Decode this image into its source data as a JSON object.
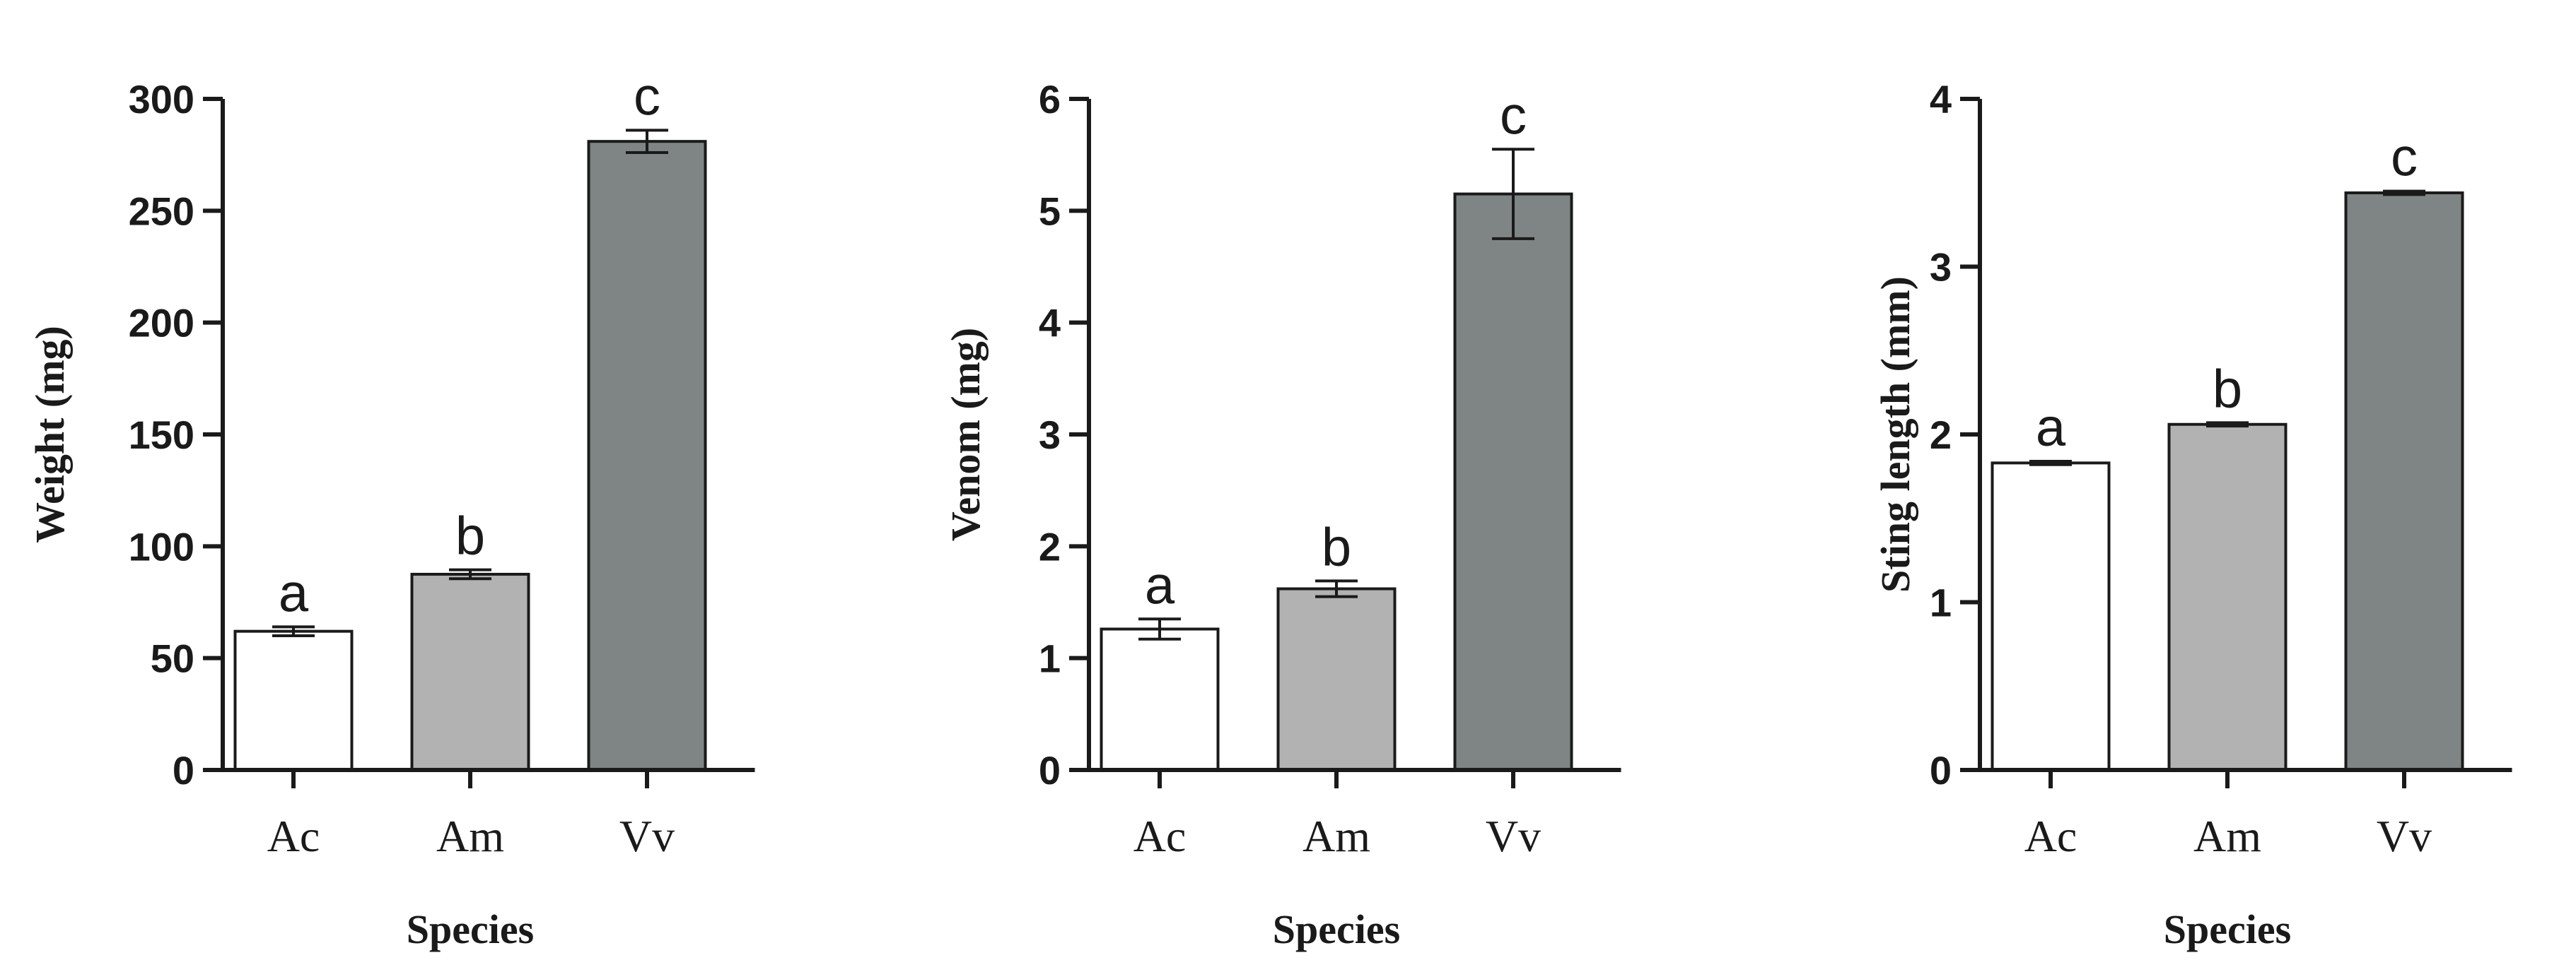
{
  "chart_data": [
    {
      "type": "bar",
      "title": "",
      "xlabel": "Species",
      "ylabel": "Weight (mg)",
      "categories": [
        "Ac",
        "Am",
        "Vv"
      ],
      "values": [
        62,
        87.5,
        281
      ],
      "errors": [
        2,
        2,
        5
      ],
      "labels": [
        "a",
        "b",
        "c"
      ],
      "ylim": [
        0,
        300
      ],
      "yticks": [
        0,
        50,
        100,
        150,
        200,
        250,
        300
      ],
      "bar_colors": [
        "#ffffff",
        "#b2b2b2",
        "#7f8584"
      ],
      "grid": false
    },
    {
      "type": "bar",
      "title": "",
      "xlabel": "Species",
      "ylabel": "Venom (mg)",
      "categories": [
        "Ac",
        "Am",
        "Vv"
      ],
      "values": [
        1.26,
        1.62,
        5.15
      ],
      "errors": [
        0.09,
        0.07,
        0.4
      ],
      "labels": [
        "a",
        "b",
        "c"
      ],
      "ylim": [
        0,
        6
      ],
      "yticks": [
        0,
        1,
        2,
        3,
        4,
        5,
        6
      ],
      "bar_colors": [
        "#ffffff",
        "#b2b2b2",
        "#7f8584"
      ],
      "grid": false
    },
    {
      "type": "bar",
      "title": "",
      "xlabel": "Species",
      "ylabel": "Sting length (mm)",
      "categories": [
        "Ac",
        "Am",
        "Vv"
      ],
      "values": [
        1.83,
        2.06,
        3.44
      ],
      "errors": [
        0.01,
        0.01,
        0.01
      ],
      "labels": [
        "a",
        "b",
        "c"
      ],
      "ylim": [
        0,
        4
      ],
      "yticks": [
        0,
        1,
        2,
        3,
        4
      ],
      "bar_colors": [
        "#ffffff",
        "#b2b2b2",
        "#7f8584"
      ],
      "grid": false
    }
  ]
}
